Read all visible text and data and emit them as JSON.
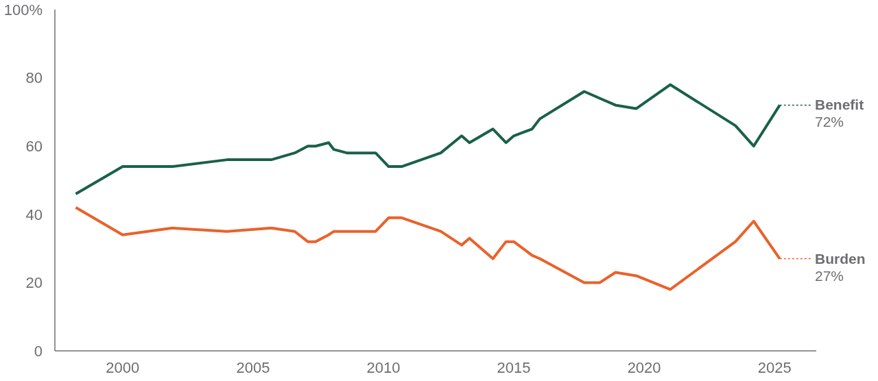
{
  "chart_data": {
    "type": "line",
    "x": [
      1998.2,
      2000,
      2001.9,
      2004.0,
      2005.7,
      2006.6,
      2007.1,
      2007.4,
      2007.9,
      2008.1,
      2008.6,
      2009.7,
      2010.2,
      2010.7,
      2012.2,
      2013.0,
      2013.3,
      2014.2,
      2014.7,
      2015.0,
      2015.7,
      2016.0,
      2017.7,
      2018.3,
      2018.9,
      2019.7,
      2021.0,
      2023.5,
      2024.2,
      2025.2
    ],
    "series": [
      {
        "name": "Benefit",
        "color": "#1a6147",
        "values": [
          46,
          54,
          54,
          56,
          56,
          58,
          60,
          60,
          61,
          59,
          58,
          58,
          54,
          54,
          58,
          63,
          61,
          65,
          61,
          63,
          65,
          68,
          76,
          74,
          72,
          71,
          78,
          66,
          60,
          72
        ],
        "value_labels": [
          null,
          null,
          null,
          null,
          null,
          null,
          null,
          null,
          null,
          null,
          null,
          null,
          null,
          null,
          null,
          null,
          null,
          null,
          null,
          null,
          null,
          null,
          null,
          null,
          null,
          null,
          null,
          null,
          null,
          "72%"
        ]
      },
      {
        "name": "Burden",
        "color": "#e9622a",
        "values": [
          42,
          34,
          36,
          35,
          36,
          35,
          32,
          32,
          34,
          35,
          35,
          35,
          39,
          39,
          35,
          31,
          33,
          27,
          32,
          32,
          28,
          27,
          20,
          20,
          23,
          22,
          18,
          32,
          38,
          27
        ],
        "value_labels": [
          null,
          null,
          null,
          null,
          null,
          null,
          null,
          null,
          null,
          null,
          null,
          null,
          null,
          null,
          null,
          null,
          null,
          null,
          null,
          null,
          null,
          null,
          null,
          null,
          null,
          null,
          null,
          null,
          null,
          "27%"
        ]
      }
    ],
    "xlim": [
      1997.4,
      2026.6
    ],
    "xticks": [
      2000,
      2005,
      2010,
      2015,
      2020,
      2025
    ],
    "ylim": [
      0,
      100
    ],
    "yticks": [
      0,
      20,
      40,
      60,
      {
        "value": 80,
        "label": "80"
      },
      {
        "value": 100,
        "label": "100%"
      }
    ],
    "marker": "none",
    "line_style": "solid"
  }
}
